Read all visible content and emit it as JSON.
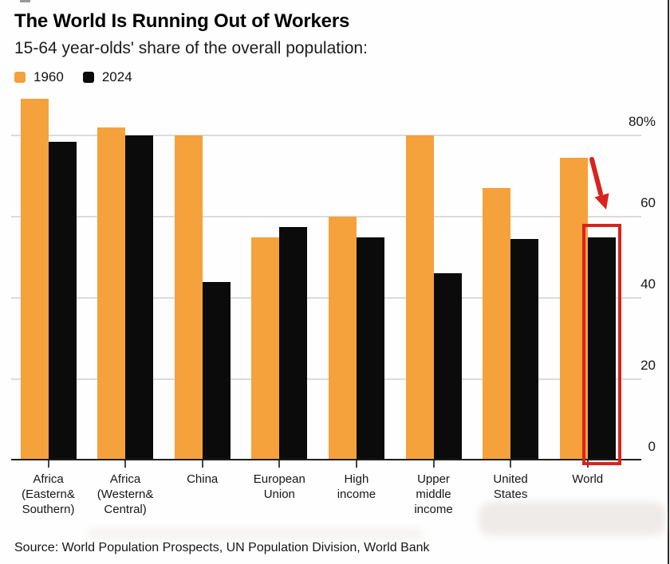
{
  "header": {
    "title": "The World Is Running Out of Workers",
    "subtitle": "15-64 year-olds' share of the overall population:"
  },
  "legend": {
    "items": [
      {
        "label": "1960"
      },
      {
        "label": "2024"
      }
    ]
  },
  "chart_data": {
    "type": "bar",
    "title": "The World Is Running Out of Workers",
    "subtitle": "15-64 year-olds' share of the overall population:",
    "unit": "%",
    "categories": [
      {
        "label": "Africa (Eastern& Southern)",
        "lines": [
          "Africa",
          "(Eastern&",
          "Southern)"
        ]
      },
      {
        "label": "Africa (Western& Central)",
        "lines": [
          "Africa",
          "(Western&",
          "Central)"
        ]
      },
      {
        "label": "China",
        "lines": [
          "China"
        ]
      },
      {
        "label": "European Union",
        "lines": [
          "European",
          "Union"
        ]
      },
      {
        "label": "High income",
        "lines": [
          "High",
          "income"
        ]
      },
      {
        "label": "Upper middle income",
        "lines": [
          "Upper",
          "middle",
          "income"
        ]
      },
      {
        "label": "United States",
        "lines": [
          "United",
          "States"
        ]
      },
      {
        "label": "World",
        "lines": [
          "World"
        ]
      }
    ],
    "series": [
      {
        "name": "1960",
        "color": "#F5A13C",
        "values": [
          89,
          82,
          80,
          55,
          60,
          80,
          67,
          74.5
        ]
      },
      {
        "name": "2024",
        "color": "#0B0B0B",
        "values": [
          78.5,
          80,
          44,
          57.5,
          55,
          46,
          54.5,
          55
        ]
      }
    ],
    "ylim": [
      0,
      90
    ],
    "yticks": [
      {
        "value": 0,
        "label": "0"
      },
      {
        "value": 20,
        "label": "20"
      },
      {
        "value": 40,
        "label": "40"
      },
      {
        "value": 60,
        "label": "60"
      },
      {
        "value": 80,
        "label": "80%"
      }
    ],
    "grid": true,
    "y_tick_label_position": "right",
    "legend_position": "top-left",
    "annotation": {
      "type": "highlight",
      "target_category": "World",
      "target_series": "2024",
      "color": "#D8231E",
      "elements": [
        "red-arrow",
        "red-box"
      ]
    }
  },
  "footer": {
    "source": "Source: World Population Prospects, UN Population Division, World Bank"
  }
}
